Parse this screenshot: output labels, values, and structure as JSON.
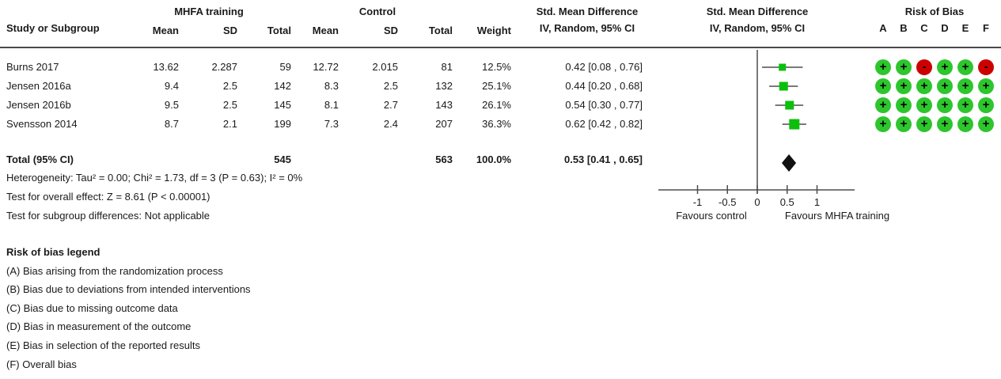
{
  "header": {
    "study_col": "Study or Subgroup",
    "group1": "MHFA training",
    "group2": "Control",
    "mean1": "Mean",
    "sd1": "SD",
    "total1": "Total",
    "mean2": "Mean",
    "sd2": "SD",
    "total2": "Total",
    "weight": "Weight",
    "smd_col_title": "Std. Mean Difference",
    "smd_col_sub": "IV, Random, 95% CI",
    "smd_plot_title": "Std. Mean Difference",
    "smd_plot_sub": "IV, Random, 95% CI",
    "rob_title": "Risk of Bias",
    "rob_letters": [
      "A",
      "B",
      "C",
      "D",
      "E",
      "F"
    ]
  },
  "studies": [
    {
      "name": "Burns 2017",
      "mean1": "13.62",
      "sd1": "2.287",
      "total1": "59",
      "mean2": "12.72",
      "sd2": "2.015",
      "total2": "81",
      "weight": "12.5%",
      "ci": "0.42 [0.08 , 0.76]",
      "rob": [
        "+",
        "+",
        "-",
        "+",
        "+",
        "-"
      ]
    },
    {
      "name": "Jensen 2016a",
      "mean1": "9.4",
      "sd1": "2.5",
      "total1": "142",
      "mean2": "8.3",
      "sd2": "2.5",
      "total2": "132",
      "weight": "25.1%",
      "ci": "0.44 [0.20 , 0.68]",
      "rob": [
        "+",
        "+",
        "+",
        "+",
        "+",
        "+"
      ]
    },
    {
      "name": "Jensen 2016b",
      "mean1": "9.5",
      "sd1": "2.5",
      "total1": "145",
      "mean2": "8.1",
      "sd2": "2.7",
      "total2": "143",
      "weight": "26.1%",
      "ci": "0.54 [0.30 , 0.77]",
      "rob": [
        "+",
        "+",
        "+",
        "+",
        "+",
        "+"
      ]
    },
    {
      "name": "Svensson 2014",
      "mean1": "8.7",
      "sd1": "2.1",
      "total1": "199",
      "mean2": "7.3",
      "sd2": "2.4",
      "total2": "207",
      "weight": "36.3%",
      "ci": "0.62 [0.42 , 0.82]",
      "rob": [
        "+",
        "+",
        "+",
        "+",
        "+",
        "+"
      ]
    }
  ],
  "total_row": {
    "label": "Total (95% CI)",
    "total1": "545",
    "total2": "563",
    "weight": "100.0%",
    "ci": "0.53 [0.41 , 0.65]"
  },
  "stats": {
    "heterogeneity": "Heterogeneity: Tau² = 0.00; Chi² = 1.73, df = 3 (P = 0.63); I² = 0%",
    "overall_effect": "Test for overall effect: Z = 8.61 (P < 0.00001)",
    "subgroup": "Test for subgroup differences: Not applicable"
  },
  "axis": {
    "tick_labels": [
      "-1",
      "-0.5",
      "0",
      "0.5",
      "1"
    ],
    "favours_left": "Favours control",
    "favours_right": "Favours MHFA training"
  },
  "legend": {
    "title": "Risk of bias legend",
    "items": [
      "(A) Bias arising from the randomization process",
      "(B) Bias due to deviations from intended interventions",
      "(C) Bias due to missing outcome data",
      "(D) Bias in measurement of the outcome",
      "(E) Bias in selection of the reported results",
      "(F) Overall bias"
    ]
  },
  "colors": {
    "square_green": "#0BBF0B",
    "circle_green": "#2DC62D",
    "circle_red": "#CC0000",
    "diamond_black": "#111111",
    "line_gray": "#4d4d4d",
    "text_black": "#1a1a1a"
  },
  "chart_data": {
    "type": "forest",
    "effect_measure": "Std. Mean Difference, IV, Random, 95% CI",
    "studies": [
      {
        "name": "Burns 2017",
        "est": 0.42,
        "lo": 0.08,
        "hi": 0.76,
        "weight_pct": 12.5
      },
      {
        "name": "Jensen 2016a",
        "est": 0.44,
        "lo": 0.2,
        "hi": 0.68,
        "weight_pct": 25.1
      },
      {
        "name": "Jensen 2016b",
        "est": 0.54,
        "lo": 0.3,
        "hi": 0.77,
        "weight_pct": 26.1
      },
      {
        "name": "Svensson 2014",
        "est": 0.62,
        "lo": 0.42,
        "hi": 0.82,
        "weight_pct": 36.3
      }
    ],
    "total": {
      "name": "Total (95% CI)",
      "est": 0.53,
      "lo": 0.41,
      "hi": 0.65,
      "weight_pct": 100.0
    },
    "ticks": [
      -1,
      -0.5,
      0,
      0.5,
      1
    ],
    "xlim": [
      -1.64,
      1.62
    ],
    "xlabel_left": "Favours control",
    "xlabel_right": "Favours MHFA training",
    "heterogeneity": {
      "tau2": 0.0,
      "chi2": 1.73,
      "df": 3,
      "p_het": 0.63,
      "i2_pct": 0
    },
    "overall_effect": {
      "z": 8.61,
      "p": "< 0.00001"
    }
  }
}
